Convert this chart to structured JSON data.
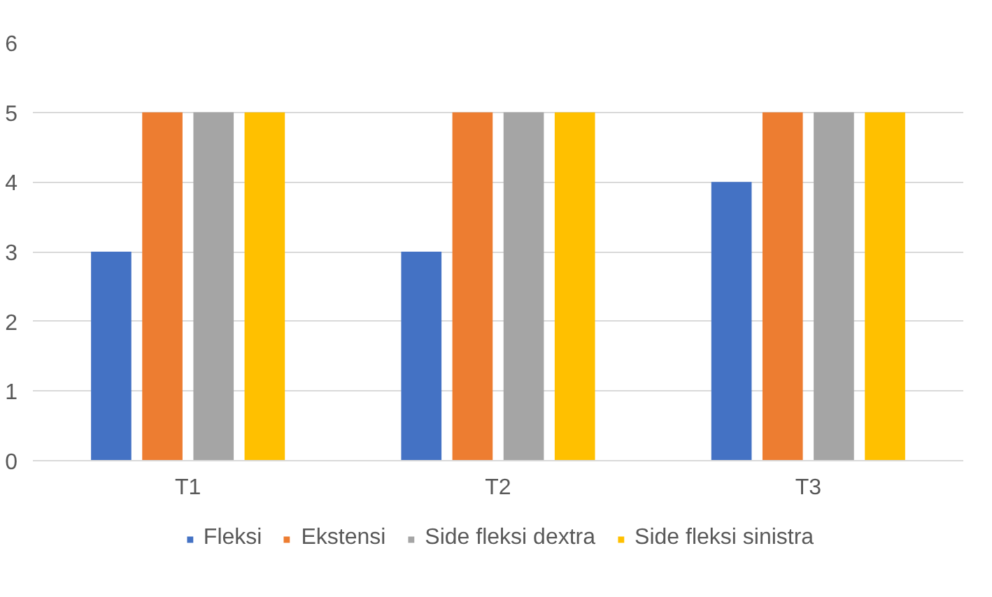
{
  "chart_data": {
    "type": "bar",
    "categories": [
      "T1",
      "T2",
      "T3"
    ],
    "series": [
      {
        "name": "Fleksi",
        "color": "#4472c4",
        "values": [
          3,
          3,
          4
        ]
      },
      {
        "name": "Ekstensi",
        "color": "#ed7d31",
        "values": [
          5,
          5,
          5
        ]
      },
      {
        "name": "Side fleksi dextra",
        "color": "#a5a5a5",
        "values": [
          5,
          5,
          5
        ]
      },
      {
        "name": "Side fleksi sinistra",
        "color": "#ffc000",
        "values": [
          5,
          5,
          5
        ]
      }
    ],
    "ylim": [
      0,
      6
    ],
    "yticks": [
      0,
      1,
      2,
      3,
      4,
      5,
      6
    ],
    "grid": "y",
    "legend": "bottom"
  }
}
